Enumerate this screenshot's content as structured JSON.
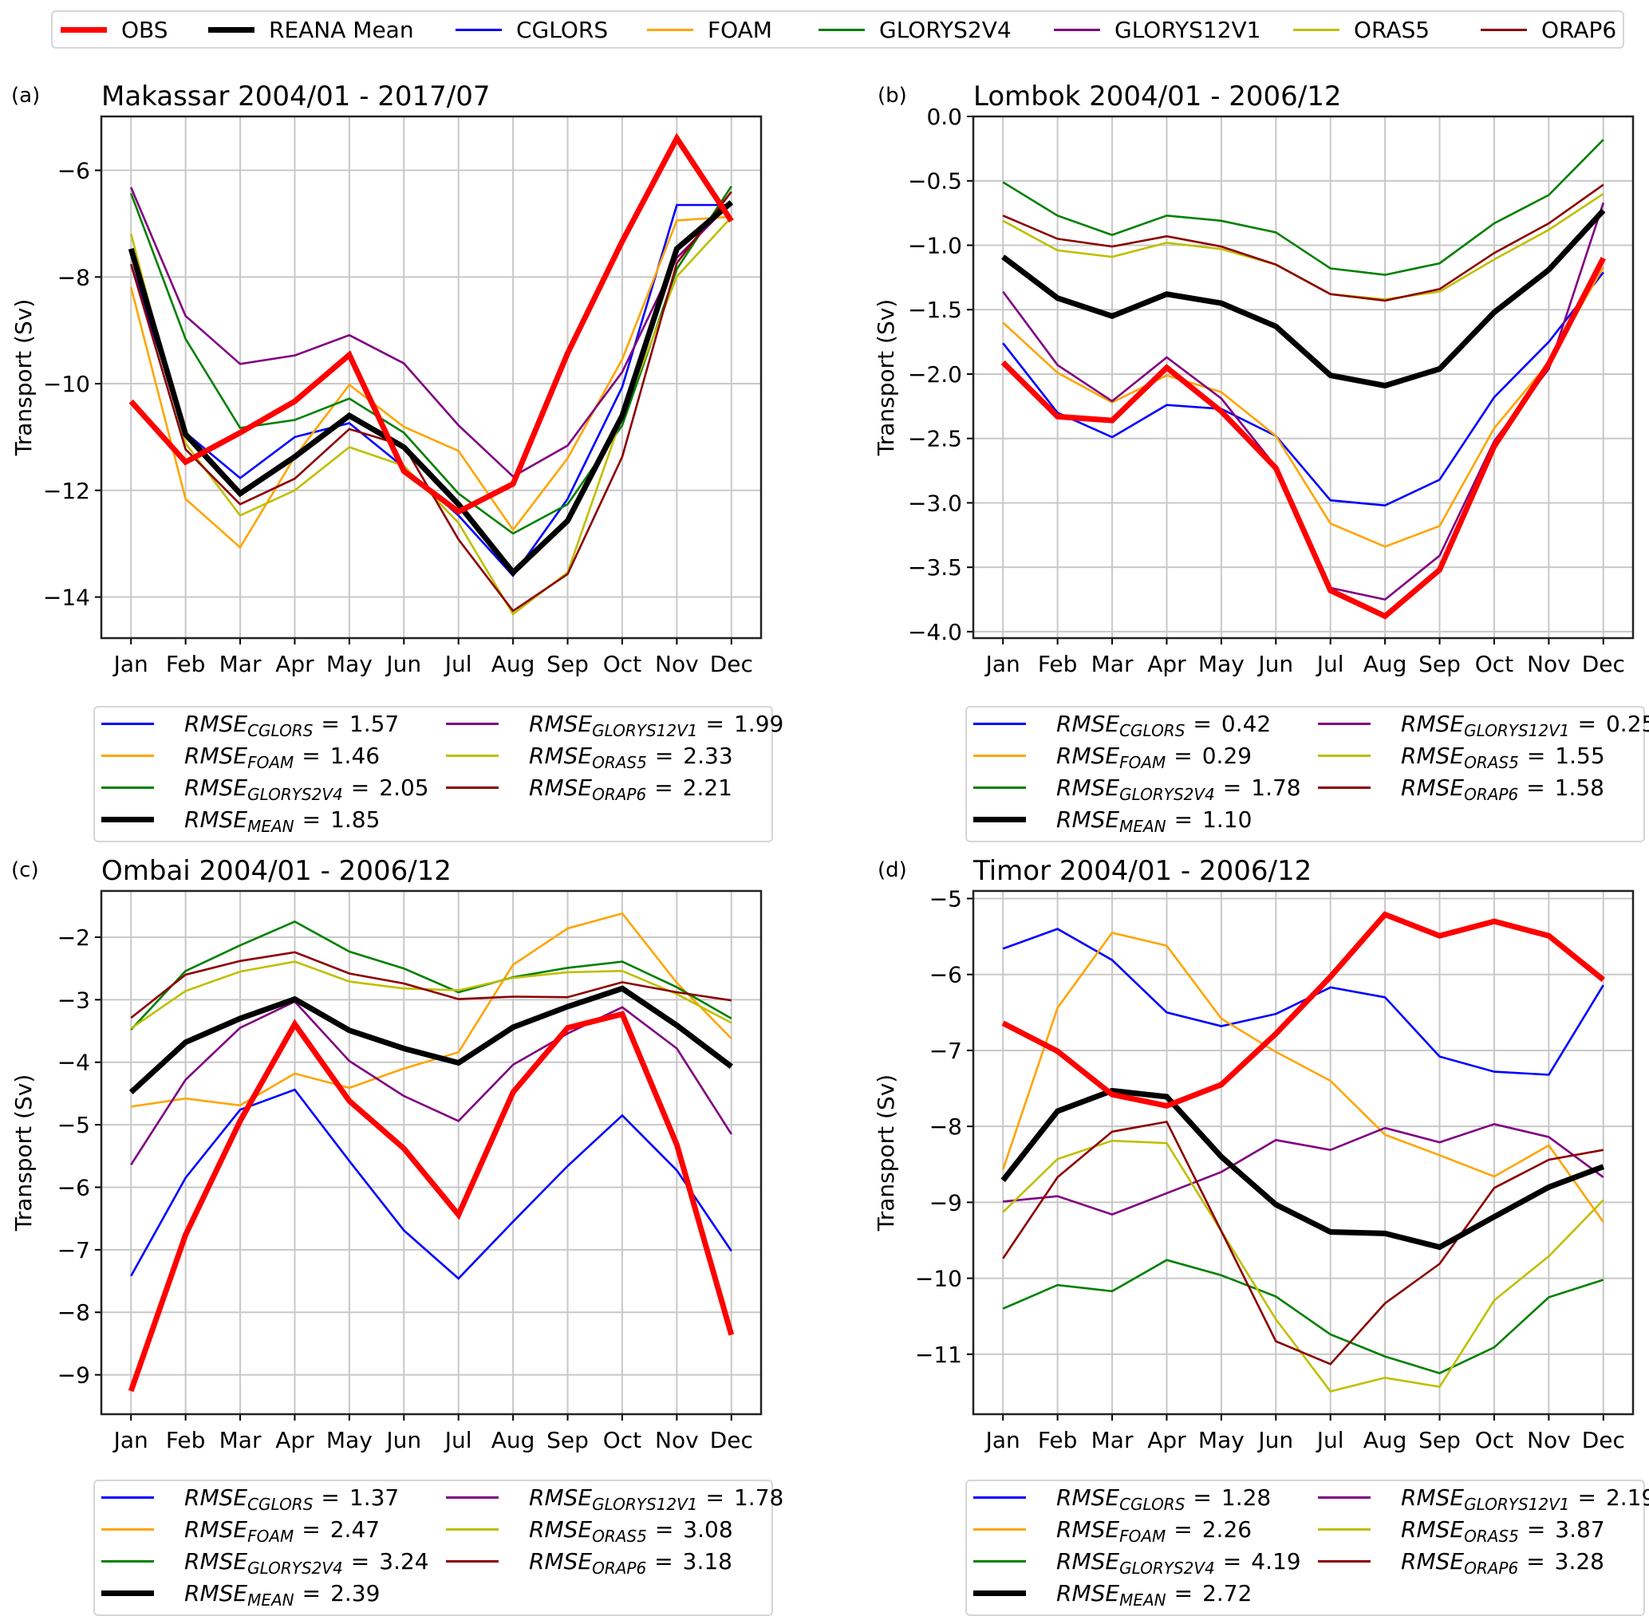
{
  "figure_legend": {
    "entries": [
      {
        "key": "OBS",
        "label": "OBS",
        "color": "#ff0000",
        "weight": "thick"
      },
      {
        "key": "MEAN",
        "label": "REANA Mean",
        "color": "#000000",
        "weight": "thick"
      },
      {
        "key": "CGLORS",
        "label": "CGLORS",
        "color": "#0000ff",
        "weight": "thin"
      },
      {
        "key": "FOAM",
        "label": "FOAM",
        "color": "#ffa500",
        "weight": "thin"
      },
      {
        "key": "GLORYS2V4",
        "label": "GLORYS2V4",
        "color": "#008000",
        "weight": "thin"
      },
      {
        "key": "GLORYS12V1",
        "label": "GLORYS12V1",
        "color": "#800080",
        "weight": "thin"
      },
      {
        "key": "ORAS5",
        "label": "ORAS5",
        "color": "#bfbf00",
        "weight": "thin"
      },
      {
        "key": "ORAP6",
        "label": "ORAP6",
        "color": "#8b0000",
        "weight": "thin"
      }
    ]
  },
  "chart_data": [
    {
      "type": "line",
      "panel_label": "(a)",
      "title": "Makassar 2004/01 - 2017/07",
      "xlabel": "",
      "ylabel": "Transport (Sv)",
      "categories": [
        "Jan",
        "Feb",
        "Mar",
        "Apr",
        "May",
        "Jun",
        "Jul",
        "Aug",
        "Sep",
        "Oct",
        "Nov",
        "Dec"
      ],
      "ylim": [
        -14.77,
        -4.99
      ],
      "yticks": [
        -6,
        -8,
        -10,
        -12,
        -14
      ],
      "ytick_labels": [
        "−6",
        "−8",
        "−10",
        "−12",
        "−14"
      ],
      "grid": true,
      "series": [
        {
          "name": "CGLORS",
          "values": [
            -7.76,
            -10.92,
            -11.77,
            -11.0,
            -10.74,
            -11.57,
            -12.47,
            -13.6,
            -12.16,
            -10.06,
            -6.65,
            -6.65
          ]
        },
        {
          "name": "FOAM",
          "values": [
            -8.19,
            -12.16,
            -13.07,
            -11.37,
            -10.02,
            -10.81,
            -11.26,
            -12.74,
            -11.4,
            -9.54,
            -6.94,
            -6.87
          ]
        },
        {
          "name": "GLORYS2V4",
          "values": [
            -6.43,
            -9.16,
            -10.83,
            -10.68,
            -10.28,
            -10.92,
            -12.06,
            -12.81,
            -12.26,
            -10.78,
            -7.85,
            -6.3
          ]
        },
        {
          "name": "GLORYS12V1",
          "values": [
            -6.32,
            -8.73,
            -9.63,
            -9.47,
            -9.09,
            -9.62,
            -10.78,
            -11.74,
            -11.16,
            -9.78,
            -7.64,
            -6.6
          ]
        },
        {
          "name": "ORAS5",
          "values": [
            -7.19,
            -11.12,
            -12.47,
            -12.0,
            -11.19,
            -11.54,
            -12.61,
            -14.32,
            -13.54,
            -10.6,
            -7.99,
            -6.88
          ]
        },
        {
          "name": "ORAP6",
          "values": [
            -7.76,
            -11.23,
            -12.26,
            -11.78,
            -10.85,
            -11.16,
            -12.92,
            -14.26,
            -13.57,
            -11.37,
            -7.74,
            -6.4
          ]
        },
        {
          "name": "MEAN",
          "values": [
            -7.47,
            -10.95,
            -12.06,
            -11.37,
            -10.6,
            -11.19,
            -12.26,
            -13.54,
            -12.57,
            -10.6,
            -7.47,
            -6.6
          ]
        },
        {
          "name": "OBS",
          "values": [
            -10.33,
            -11.47,
            -10.92,
            -10.33,
            -9.46,
            -11.64,
            -12.4,
            -11.88,
            -9.43,
            -7.33,
            -5.4,
            -6.95
          ]
        }
      ],
      "rmse": [
        {
          "model": "CGLORS",
          "value": "1.57"
        },
        {
          "model": "FOAM",
          "value": "1.46"
        },
        {
          "model": "GLORYS2V4",
          "value": "2.05"
        },
        {
          "model": "MEAN",
          "value": "1.85"
        },
        {
          "model": "GLORYS12V1",
          "value": "1.99"
        },
        {
          "model": "ORAS5",
          "value": "2.33"
        },
        {
          "model": "ORAP6",
          "value": "2.21"
        }
      ]
    },
    {
      "type": "line",
      "panel_label": "(b)",
      "title": "Lombok 2004/01 - 2006/12",
      "xlabel": "",
      "ylabel": "Transport (Sv)",
      "categories": [
        "Jan",
        "Feb",
        "Mar",
        "Apr",
        "May",
        "Jun",
        "Jul",
        "Aug",
        "Sep",
        "Oct",
        "Nov",
        "Dec"
      ],
      "ylim": [
        -4.05,
        0.0
      ],
      "yticks": [
        0.0,
        -0.5,
        -1.0,
        -1.5,
        -2.0,
        -2.5,
        -3.0,
        -3.5,
        -4.0
      ],
      "ytick_labels": [
        "0.0",
        "−0.5",
        "−1.0",
        "−1.5",
        "−2.0",
        "−2.5",
        "−3.0",
        "−3.5",
        "−4.0"
      ],
      "grid": true,
      "series": [
        {
          "name": "CGLORS",
          "values": [
            -1.76,
            -2.3,
            -2.49,
            -2.24,
            -2.27,
            -2.48,
            -2.98,
            -3.02,
            -2.82,
            -2.18,
            -1.75,
            -1.21
          ]
        },
        {
          "name": "FOAM",
          "values": [
            -1.6,
            -1.99,
            -2.22,
            -2.01,
            -2.14,
            -2.48,
            -3.16,
            -3.34,
            -3.18,
            -2.42,
            -1.91,
            -1.17
          ]
        },
        {
          "name": "GLORYS2V4",
          "values": [
            -0.51,
            -0.77,
            -0.92,
            -0.77,
            -0.81,
            -0.9,
            -1.18,
            -1.23,
            -1.14,
            -0.83,
            -0.61,
            -0.18
          ]
        },
        {
          "name": "GLORYS12V1",
          "values": [
            -1.36,
            -1.93,
            -2.21,
            -1.87,
            -2.19,
            -2.72,
            -3.66,
            -3.75,
            -3.41,
            -2.52,
            -1.96,
            -0.67
          ]
        },
        {
          "name": "ORAS5",
          "values": [
            -0.81,
            -1.04,
            -1.09,
            -0.98,
            -1.03,
            -1.15,
            -1.38,
            -1.42,
            -1.36,
            -1.11,
            -0.88,
            -0.6
          ]
        },
        {
          "name": "ORAP6",
          "values": [
            -0.77,
            -0.95,
            -1.01,
            -0.93,
            -1.01,
            -1.15,
            -1.38,
            -1.43,
            -1.34,
            -1.06,
            -0.83,
            -0.53
          ]
        },
        {
          "name": "MEAN",
          "values": [
            -1.09,
            -1.41,
            -1.55,
            -1.38,
            -1.45,
            -1.63,
            -2.01,
            -2.09,
            -1.96,
            -1.52,
            -1.19,
            -0.73
          ]
        },
        {
          "name": "OBS",
          "values": [
            -1.91,
            -2.33,
            -2.36,
            -1.95,
            -2.29,
            -2.73,
            -3.68,
            -3.88,
            -3.52,
            -2.56,
            -1.92,
            -1.1
          ]
        }
      ],
      "rmse": [
        {
          "model": "CGLORS",
          "value": "0.42"
        },
        {
          "model": "FOAM",
          "value": "0.29"
        },
        {
          "model": "GLORYS2V4",
          "value": "1.78"
        },
        {
          "model": "MEAN",
          "value": "1.10"
        },
        {
          "model": "GLORYS12V1",
          "value": "0.25"
        },
        {
          "model": "ORAS5",
          "value": "1.55"
        },
        {
          "model": "ORAP6",
          "value": "1.58"
        }
      ]
    },
    {
      "type": "line",
      "panel_label": "(c)",
      "title": "Ombai 2004/01 - 2006/12",
      "xlabel": "",
      "ylabel": "Transport (Sv)",
      "categories": [
        "Jan",
        "Feb",
        "Mar",
        "Apr",
        "May",
        "Jun",
        "Jul",
        "Aug",
        "Sep",
        "Oct",
        "Nov",
        "Dec"
      ],
      "ylim": [
        -9.63,
        -1.26
      ],
      "yticks": [
        -2,
        -3,
        -4,
        -5,
        -6,
        -7,
        -8,
        -9
      ],
      "ytick_labels": [
        "−2",
        "−3",
        "−4",
        "−5",
        "−6",
        "−7",
        "−8",
        "−9"
      ],
      "grid": true,
      "series": [
        {
          "name": "CGLORS",
          "values": [
            -7.42,
            -5.85,
            -4.76,
            -4.44,
            -5.58,
            -6.69,
            -7.46,
            -6.55,
            -5.66,
            -4.85,
            -5.73,
            -7.02
          ]
        },
        {
          "name": "FOAM",
          "values": [
            -4.71,
            -4.58,
            -4.69,
            -4.18,
            -4.41,
            -4.1,
            -3.84,
            -2.44,
            -1.86,
            -1.62,
            -2.73,
            -3.62
          ]
        },
        {
          "name": "GLORYS2V4",
          "values": [
            -3.48,
            -2.54,
            -2.13,
            -1.75,
            -2.23,
            -2.5,
            -2.88,
            -2.64,
            -2.49,
            -2.39,
            -2.8,
            -3.3
          ]
        },
        {
          "name": "GLORYS12V1",
          "values": [
            -5.64,
            -4.28,
            -3.45,
            -3.03,
            -3.98,
            -4.54,
            -4.94,
            -4.04,
            -3.54,
            -3.12,
            -3.78,
            -5.15
          ]
        },
        {
          "name": "ORAS5",
          "values": [
            -3.46,
            -2.86,
            -2.55,
            -2.39,
            -2.71,
            -2.82,
            -2.85,
            -2.65,
            -2.56,
            -2.54,
            -2.91,
            -3.37
          ]
        },
        {
          "name": "ORAP6",
          "values": [
            -3.29,
            -2.6,
            -2.38,
            -2.24,
            -2.58,
            -2.74,
            -2.99,
            -2.95,
            -2.96,
            -2.72,
            -2.88,
            -3.01
          ]
        },
        {
          "name": "MEAN",
          "values": [
            -4.48,
            -3.68,
            -3.3,
            -2.99,
            -3.49,
            -3.78,
            -4.01,
            -3.44,
            -3.11,
            -2.82,
            -3.41,
            -4.07
          ]
        },
        {
          "name": "OBS",
          "values": [
            -9.26,
            -6.76,
            -4.94,
            -3.39,
            -4.62,
            -5.38,
            -6.44,
            -4.48,
            -3.45,
            -3.23,
            -5.32,
            -8.36
          ]
        }
      ],
      "rmse": [
        {
          "model": "CGLORS",
          "value": "1.37"
        },
        {
          "model": "FOAM",
          "value": "2.47"
        },
        {
          "model": "GLORYS2V4",
          "value": "3.24"
        },
        {
          "model": "MEAN",
          "value": "2.39"
        },
        {
          "model": "GLORYS12V1",
          "value": "1.78"
        },
        {
          "model": "ORAS5",
          "value": "3.08"
        },
        {
          "model": "ORAP6",
          "value": "3.18"
        }
      ]
    },
    {
      "type": "line",
      "panel_label": "(d)",
      "title": "Timor 2004/01 - 2006/12",
      "xlabel": "",
      "ylabel": "Transport (Sv)",
      "categories": [
        "Jan",
        "Feb",
        "Mar",
        "Apr",
        "May",
        "Jun",
        "Jul",
        "Aug",
        "Sep",
        "Oct",
        "Nov",
        "Dec"
      ],
      "ylim": [
        -11.79,
        -4.9
      ],
      "yticks": [
        -5,
        -6,
        -7,
        -8,
        -9,
        -10,
        -11
      ],
      "ytick_labels": [
        "−5",
        "−6",
        "−7",
        "−8",
        "−9",
        "−10",
        "−11"
      ],
      "grid": true,
      "series": [
        {
          "name": "CGLORS",
          "values": [
            -5.66,
            -5.4,
            -5.81,
            -6.5,
            -6.68,
            -6.52,
            -6.17,
            -6.3,
            -7.08,
            -7.28,
            -7.32,
            -6.14
          ]
        },
        {
          "name": "FOAM",
          "values": [
            -8.57,
            -6.44,
            -5.45,
            -5.62,
            -6.58,
            -7.02,
            -7.4,
            -8.11,
            -8.38,
            -8.66,
            -8.25,
            -9.26
          ]
        },
        {
          "name": "GLORYS2V4",
          "values": [
            -10.4,
            -10.09,
            -10.17,
            -9.76,
            -9.96,
            -10.24,
            -10.74,
            -11.03,
            -11.25,
            -10.91,
            -10.25,
            -10.02
          ]
        },
        {
          "name": "GLORYS12V1",
          "values": [
            -8.99,
            -8.92,
            -9.16,
            -8.88,
            -8.6,
            -8.18,
            -8.31,
            -8.02,
            -8.21,
            -7.97,
            -8.14,
            -8.67
          ]
        },
        {
          "name": "ORAS5",
          "values": [
            -9.13,
            -8.43,
            -8.19,
            -8.22,
            -9.38,
            -10.54,
            -11.49,
            -11.31,
            -11.43,
            -10.29,
            -9.71,
            -8.97
          ]
        },
        {
          "name": "ORAP6",
          "values": [
            -9.74,
            -8.67,
            -8.07,
            -7.94,
            -9.38,
            -10.83,
            -11.13,
            -10.33,
            -9.81,
            -8.81,
            -8.44,
            -8.31
          ]
        },
        {
          "name": "MEAN",
          "values": [
            -8.71,
            -7.8,
            -7.53,
            -7.61,
            -8.4,
            -9.03,
            -9.39,
            -9.41,
            -9.59,
            -9.19,
            -8.8,
            -8.53
          ]
        },
        {
          "name": "OBS",
          "values": [
            -6.64,
            -7.01,
            -7.58,
            -7.73,
            -7.45,
            -6.78,
            -6.03,
            -5.21,
            -5.49,
            -5.3,
            -5.49,
            -6.07
          ]
        }
      ],
      "rmse": [
        {
          "model": "CGLORS",
          "value": "1.28"
        },
        {
          "model": "FOAM",
          "value": "2.26"
        },
        {
          "model": "GLORYS2V4",
          "value": "4.19"
        },
        {
          "model": "MEAN",
          "value": "2.72"
        },
        {
          "model": "GLORYS12V1",
          "value": "2.19"
        },
        {
          "model": "ORAS5",
          "value": "3.87"
        },
        {
          "model": "ORAP6",
          "value": "3.28"
        }
      ]
    }
  ],
  "rmse_prefix": "RMSE",
  "rmse_equals": "="
}
